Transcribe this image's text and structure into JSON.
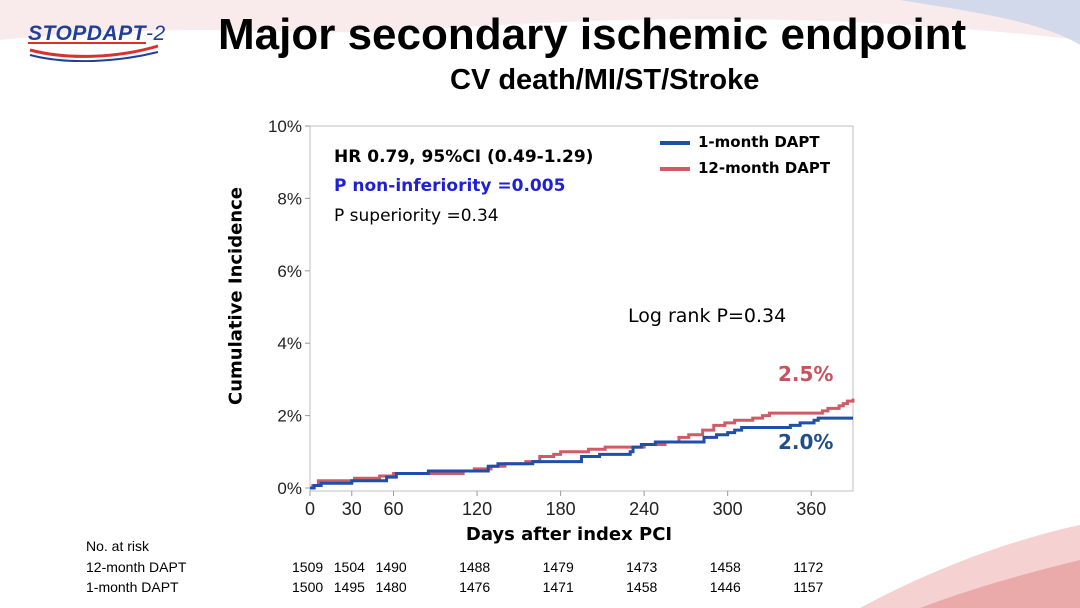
{
  "header": {
    "logo_text": "STOPDAPT",
    "logo_suffix": "-2",
    "title": "Major secondary ischemic endpoint",
    "subtitle": "CV death/MI/ST/Stroke"
  },
  "colors": {
    "one_month": "#1f4fa8",
    "twelve_month": "#d05a66",
    "p_noninferiority": "#1f1fd6"
  },
  "annotations": {
    "hr": "HR 0.79, 95%CI (0.49-1.29)",
    "p_noninferiority": "P non-inferiority =0.005",
    "p_superiority": "P superiority =0.34",
    "log_rank": "Log rank P=0.34",
    "end_12month": "2.5%",
    "end_1month": "2.0%"
  },
  "chart_data": {
    "type": "line",
    "xlabel": "Days after index PCI",
    "ylabel": "Cumulative Incidence",
    "xlim": [
      0,
      390
    ],
    "ylim": [
      0,
      10
    ],
    "x_ticks": [
      "0",
      "30",
      "60",
      "120",
      "180",
      "240",
      "300",
      "360"
    ],
    "y_ticks": [
      "0%",
      "2%",
      "4%",
      "6%",
      "8%",
      "10%"
    ],
    "grid": false,
    "legend_position": "top-right",
    "series": [
      {
        "name": "1-month DAPT",
        "points": [
          [
            0,
            0
          ],
          [
            3,
            0.07
          ],
          [
            8,
            0.13
          ],
          [
            30,
            0.2
          ],
          [
            55,
            0.3
          ],
          [
            62,
            0.4
          ],
          [
            85,
            0.47
          ],
          [
            128,
            0.6
          ],
          [
            135,
            0.67
          ],
          [
            160,
            0.73
          ],
          [
            195,
            0.87
          ],
          [
            208,
            0.93
          ],
          [
            230,
            1.0
          ],
          [
            232,
            1.13
          ],
          [
            238,
            1.2
          ],
          [
            248,
            1.27
          ],
          [
            283,
            1.4
          ],
          [
            292,
            1.47
          ],
          [
            300,
            1.53
          ],
          [
            305,
            1.6
          ],
          [
            310,
            1.67
          ],
          [
            345,
            1.73
          ],
          [
            352,
            1.8
          ],
          [
            362,
            1.87
          ],
          [
            365,
            1.93
          ],
          [
            390,
            1.93
          ]
        ]
      },
      {
        "name": "12-month DAPT",
        "points": [
          [
            0,
            0
          ],
          [
            2,
            0.07
          ],
          [
            6,
            0.2
          ],
          [
            32,
            0.27
          ],
          [
            50,
            0.33
          ],
          [
            60,
            0.4
          ],
          [
            110,
            0.47
          ],
          [
            118,
            0.53
          ],
          [
            130,
            0.6
          ],
          [
            140,
            0.67
          ],
          [
            155,
            0.73
          ],
          [
            165,
            0.87
          ],
          [
            175,
            0.93
          ],
          [
            180,
            1.0
          ],
          [
            200,
            1.07
          ],
          [
            212,
            1.13
          ],
          [
            240,
            1.2
          ],
          [
            255,
            1.27
          ],
          [
            265,
            1.4
          ],
          [
            272,
            1.47
          ],
          [
            282,
            1.6
          ],
          [
            290,
            1.73
          ],
          [
            298,
            1.8
          ],
          [
            305,
            1.87
          ],
          [
            318,
            1.93
          ],
          [
            325,
            2.0
          ],
          [
            330,
            2.07
          ],
          [
            368,
            2.13
          ],
          [
            372,
            2.2
          ],
          [
            380,
            2.27
          ],
          [
            383,
            2.33
          ],
          [
            386,
            2.4
          ],
          [
            390,
            2.47
          ]
        ]
      }
    ]
  },
  "risk_table": {
    "header": "No. at risk",
    "rows": [
      {
        "label": "12-month DAPT",
        "values": [
          "1509",
          "1504",
          "1490",
          "1488",
          "1479",
          "1473",
          "1458",
          "1172"
        ]
      },
      {
        "label": "1-month DAPT",
        "values": [
          "1500",
          "1495",
          "1480",
          "1476",
          "1471",
          "1458",
          "1446",
          "1157"
        ]
      }
    ]
  }
}
